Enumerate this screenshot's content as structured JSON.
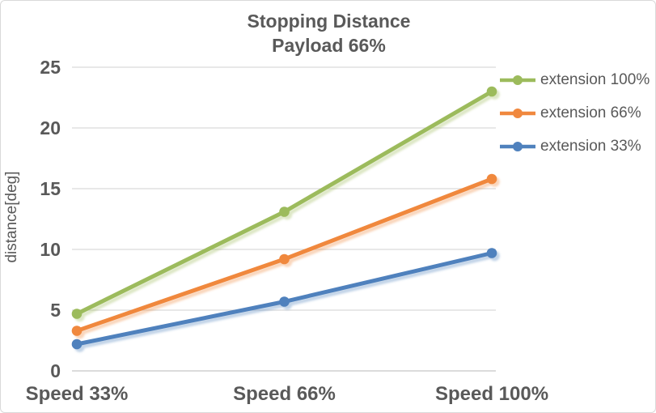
{
  "chart_data": {
    "type": "line",
    "title": "Stopping Distance",
    "subtitle": "Payload 66%",
    "categories": [
      "Speed 33%",
      "Speed 66%",
      "Speed 100%"
    ],
    "series": [
      {
        "name": "extension 100%",
        "color": "#9CBB5C",
        "values": [
          4.7,
          13.1,
          23.0
        ]
      },
      {
        "name": "extension 66%",
        "color": "#F0883E",
        "values": [
          3.3,
          9.2,
          15.8
        ]
      },
      {
        "name": "extension 33%",
        "color": "#4F81BD",
        "values": [
          2.2,
          5.7,
          9.7
        ]
      }
    ],
    "xlabel": "",
    "ylabel": "distance[deg]",
    "ylim": [
      0,
      25
    ],
    "ytick_interval": 5,
    "yticks": [
      0,
      5,
      10,
      15,
      20,
      25
    ],
    "grid": true,
    "legend_position": "right",
    "marker": "circle"
  },
  "colors": {
    "text": "#595959",
    "gridline": "#D9D9D9",
    "zero_line": "#C6C6C6",
    "border": "#D9D9D9",
    "background": "#FFFFFF"
  }
}
